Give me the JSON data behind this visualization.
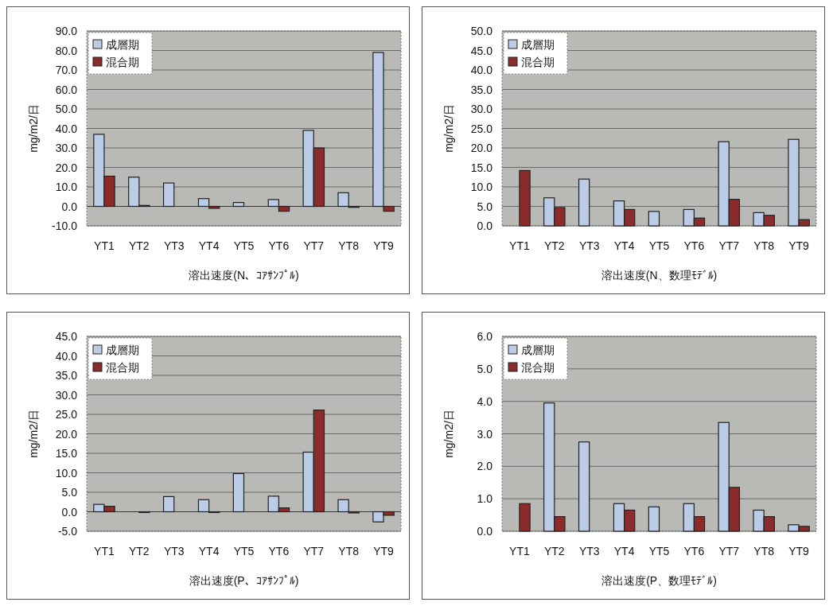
{
  "chart_data": [
    {
      "type": "bar",
      "xlabel": "溶出速度(N、ｺｱｻﾝﾌﾟﾙ)",
      "ylabel": "mg/m2/日",
      "categories": [
        "YT1",
        "YT2",
        "YT3",
        "YT4",
        "YT5",
        "YT6",
        "YT7",
        "YT8",
        "YT9"
      ],
      "ylim": [
        -10,
        90
      ],
      "yticks": [
        {
          "value": -10,
          "label": "-10.0"
        },
        {
          "value": 0,
          "label": "0.0"
        },
        {
          "value": 10,
          "label": "10.0"
        },
        {
          "value": 20,
          "label": "20.0"
        },
        {
          "value": 30,
          "label": "30.0"
        },
        {
          "value": 40,
          "label": "40.0"
        },
        {
          "value": 50,
          "label": "50.0"
        },
        {
          "value": 60,
          "label": "60.0"
        },
        {
          "value": 70,
          "label": "70.0"
        },
        {
          "value": 80,
          "label": "80.0"
        },
        {
          "value": 90,
          "label": "90.0"
        }
      ],
      "grid": "y",
      "legend": "top left",
      "series": [
        {
          "name": "成層期",
          "color": "#bccbe6",
          "values": [
            37,
            15,
            12,
            4,
            2,
            3.5,
            39,
            7,
            79
          ]
        },
        {
          "name": "混合期",
          "color": "#8a2c2c",
          "values": [
            15.5,
            0.5,
            null,
            -1,
            null,
            -2.5,
            30,
            -0.5,
            -2.5
          ]
        }
      ]
    },
    {
      "type": "bar",
      "xlabel": "溶出速度(N、数理ﾓﾃﾞﾙ)",
      "ylabel": "mg/m2/日",
      "categories": [
        "YT1",
        "YT2",
        "YT3",
        "YT4",
        "YT5",
        "YT6",
        "YT7",
        "YT8",
        "YT9"
      ],
      "ylim": [
        0,
        50
      ],
      "yticks": [
        {
          "value": 0,
          "label": "0.0"
        },
        {
          "value": 5,
          "label": "5.0"
        },
        {
          "value": 10,
          "label": "10.0"
        },
        {
          "value": 15,
          "label": "15.0"
        },
        {
          "value": 20,
          "label": "20.0"
        },
        {
          "value": 25,
          "label": "25.0"
        },
        {
          "value": 30,
          "label": "30.0"
        },
        {
          "value": 35,
          "label": "35.0"
        },
        {
          "value": 40,
          "label": "40.0"
        },
        {
          "value": 45,
          "label": "45.0"
        },
        {
          "value": 50,
          "label": "50.0"
        }
      ],
      "grid": "y",
      "legend": "top left",
      "series": [
        {
          "name": "成層期",
          "color": "#bccbe6",
          "values": [
            null,
            7.2,
            12,
            6.4,
            3.7,
            4.2,
            21.6,
            3.4,
            22.2
          ]
        },
        {
          "name": "混合期",
          "color": "#8a2c2c",
          "values": [
            14.2,
            4.7,
            null,
            4.2,
            null,
            2,
            6.8,
            2.7,
            1.6
          ]
        }
      ]
    },
    {
      "type": "bar",
      "xlabel": "溶出速度(P、ｺｱｻﾝﾌﾟﾙ)",
      "ylabel": "mg/m2/日",
      "categories": [
        "YT1",
        "YT2",
        "YT3",
        "YT4",
        "YT5",
        "YT6",
        "YT7",
        "YT8",
        "YT9"
      ],
      "ylim": [
        -5,
        45
      ],
      "yticks": [
        {
          "value": -5,
          "label": "-5.0"
        },
        {
          "value": 0,
          "label": "0.0"
        },
        {
          "value": 5,
          "label": "5.0"
        },
        {
          "value": 10,
          "label": "10.0"
        },
        {
          "value": 15,
          "label": "15.0"
        },
        {
          "value": 20,
          "label": "20.0"
        },
        {
          "value": 25,
          "label": "25.0"
        },
        {
          "value": 30,
          "label": "30.0"
        },
        {
          "value": 35,
          "label": "35.0"
        },
        {
          "value": 40,
          "label": "40.0"
        },
        {
          "value": 45,
          "label": "45.0"
        }
      ],
      "grid": "y",
      "legend": "top left",
      "series": [
        {
          "name": "成層期",
          "color": "#bccbe6",
          "values": [
            1.9,
            null,
            3.9,
            3.1,
            9.8,
            4,
            15.3,
            3.1,
            -2.6
          ]
        },
        {
          "name": "混合期",
          "color": "#8a2c2c",
          "values": [
            1.4,
            -0.2,
            null,
            -0.2,
            null,
            1,
            26.1,
            -0.3,
            -0.9
          ]
        }
      ]
    },
    {
      "type": "bar",
      "xlabel": "溶出速度(P、数理ﾓﾃﾞﾙ)",
      "ylabel": "mg/m2/日",
      "categories": [
        "YT1",
        "YT2",
        "YT3",
        "YT4",
        "YT5",
        "YT6",
        "YT7",
        "YT8",
        "YT9"
      ],
      "ylim": [
        0,
        6
      ],
      "yticks": [
        {
          "value": 0,
          "label": "0.0"
        },
        {
          "value": 1,
          "label": "1.0"
        },
        {
          "value": 2,
          "label": "2.0"
        },
        {
          "value": 3,
          "label": "3.0"
        },
        {
          "value": 4,
          "label": "4.0"
        },
        {
          "value": 5,
          "label": "5.0"
        },
        {
          "value": 6,
          "label": "6.0"
        }
      ],
      "grid": "y",
      "legend": "top left",
      "series": [
        {
          "name": "成層期",
          "color": "#bccbe6",
          "values": [
            null,
            3.95,
            2.75,
            0.85,
            0.75,
            0.85,
            3.35,
            0.65,
            0.2
          ]
        },
        {
          "name": "混合期",
          "color": "#8a2c2c",
          "values": [
            0.85,
            0.45,
            null,
            0.65,
            null,
            0.45,
            1.35,
            0.45,
            0.15
          ]
        }
      ]
    }
  ]
}
